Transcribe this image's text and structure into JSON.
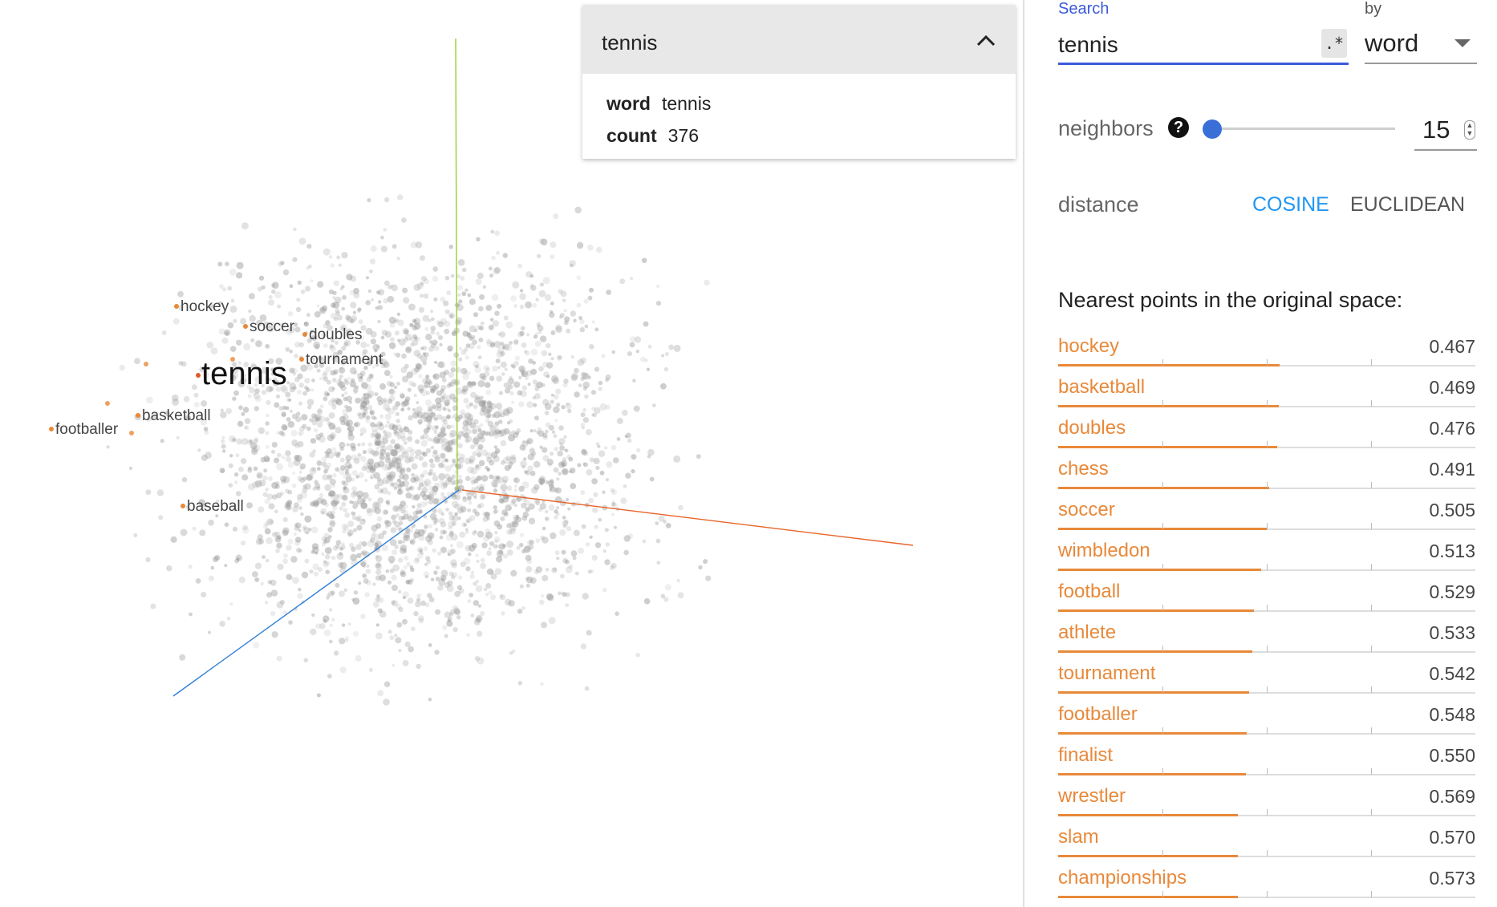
{
  "card": {
    "title": "tennis",
    "rows": [
      {
        "key": "word",
        "value": "tennis"
      },
      {
        "key": "count",
        "value": "376"
      }
    ]
  },
  "labels": {
    "focus": "tennis",
    "neighbors": [
      "hockey",
      "soccer",
      "doubles",
      "tournament",
      "basketball",
      "footballer",
      "baseball"
    ]
  },
  "search": {
    "label": "Search",
    "value": "tennis",
    "regex": ".*",
    "by_label": "by",
    "by_value": "word"
  },
  "neighbors": {
    "label": "neighbors",
    "help": "?",
    "value": "15",
    "slider_fraction": 0.0
  },
  "distance": {
    "label": "distance",
    "options": [
      "COSINE",
      "EUCLIDEAN"
    ],
    "selected": "COSINE"
  },
  "nearest": {
    "title": "Nearest points in the original space:",
    "items": [
      {
        "word": "hockey",
        "value": "0.467"
      },
      {
        "word": "basketball",
        "value": "0.469"
      },
      {
        "word": "doubles",
        "value": "0.476"
      },
      {
        "word": "chess",
        "value": "0.491"
      },
      {
        "word": "soccer",
        "value": "0.505"
      },
      {
        "word": "wimbledon",
        "value": "0.513"
      },
      {
        "word": "football",
        "value": "0.529"
      },
      {
        "word": "athlete",
        "value": "0.533"
      },
      {
        "word": "tournament",
        "value": "0.542"
      },
      {
        "word": "footballer",
        "value": "0.548"
      },
      {
        "word": "finalist",
        "value": "0.550"
      },
      {
        "word": "wrestler",
        "value": "0.569"
      },
      {
        "word": "slam",
        "value": "0.570"
      },
      {
        "word": "championships",
        "value": "0.573"
      }
    ]
  },
  "colors": {
    "accent": "#3b5bdb",
    "highlight": "#e8893a",
    "axis_x": "#e8642a",
    "axis_y": "#9acd32",
    "axis_z": "#2f7fd8"
  }
}
